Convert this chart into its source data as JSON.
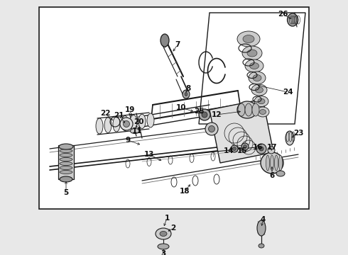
{
  "bg_color": "#e8e8e8",
  "line_color": "#1a1a1a",
  "label_color": "#111111",
  "fig_width": 4.9,
  "fig_height": 3.6,
  "dpi": 100
}
